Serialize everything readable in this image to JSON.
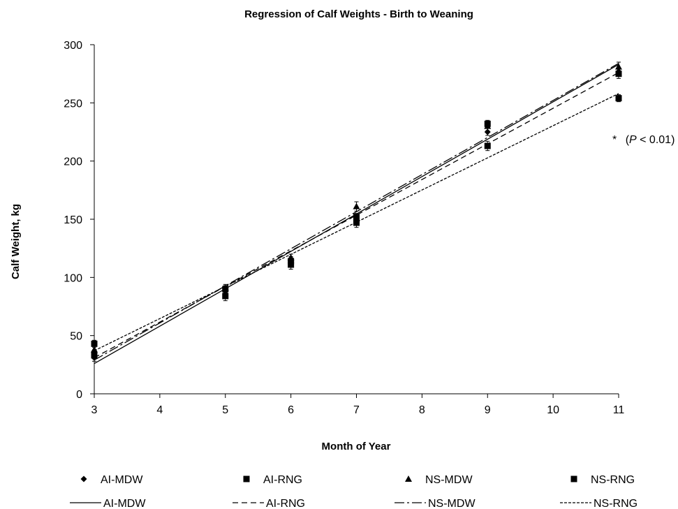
{
  "chart_data": {
    "type": "scatter",
    "title": "Regression of Calf Weights - Birth to Weaning",
    "xlabel": "Month of Year",
    "ylabel": "Calf Weight, kg",
    "xlim": [
      3,
      11
    ],
    "ylim": [
      0,
      300
    ],
    "x_ticks": [
      3,
      4,
      5,
      6,
      7,
      8,
      9,
      10,
      11
    ],
    "y_ticks": [
      0,
      50,
      100,
      150,
      200,
      250,
      300
    ],
    "grid": false,
    "legend_position": "bottom",
    "annotation": {
      "star": "*",
      "open": "(",
      "p": "P",
      "rest": " < 0.01)"
    },
    "series": [
      {
        "name": "AI-MDW",
        "marker": "diamond",
        "x": [
          3,
          5,
          6,
          7,
          9,
          11
        ],
        "y": [
          31,
          88,
          115,
          148,
          225,
          277
        ],
        "err": [
          3,
          3,
          3,
          3,
          3,
          3
        ]
      },
      {
        "name": "AI-RNG",
        "marker": "square",
        "x": [
          3,
          5,
          6,
          7,
          9,
          11
        ],
        "y": [
          33,
          84,
          111,
          147,
          213,
          275
        ],
        "err": [
          3,
          4,
          4,
          4,
          4,
          4
        ]
      },
      {
        "name": "NS-MDW",
        "marker": "triangle",
        "x": [
          3,
          5,
          6,
          7,
          9,
          11
        ],
        "y": [
          38,
          91,
          117,
          161,
          230,
          281
        ],
        "err": [
          3,
          3,
          3,
          4,
          4,
          4
        ]
      },
      {
        "name": "NS-RNG",
        "marker": "square",
        "x": [
          3,
          5,
          6,
          7,
          9,
          11
        ],
        "y": [
          43,
          90,
          114,
          152,
          232,
          254
        ],
        "err": [
          3,
          3,
          3,
          3,
          3,
          3
        ]
      }
    ],
    "trendlines": [
      {
        "name": "AI-MDW",
        "style": "solid",
        "x": [
          3,
          11
        ],
        "y": [
          26,
          283
        ]
      },
      {
        "name": "AI-RNG",
        "style": "dash",
        "x": [
          3,
          11
        ],
        "y": [
          31,
          276
        ]
      },
      {
        "name": "NS-MDW",
        "style": "dashdot",
        "x": [
          3,
          11
        ],
        "y": [
          29,
          284
        ]
      },
      {
        "name": "NS-RNG",
        "style": "shortdash",
        "x": [
          3,
          11
        ],
        "y": [
          37,
          258
        ]
      }
    ]
  }
}
